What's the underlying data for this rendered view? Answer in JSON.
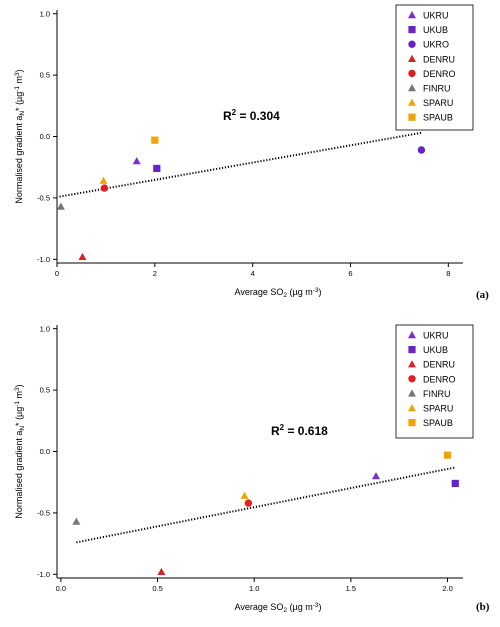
{
  "colors": {
    "UKRU": "#7a2fd0",
    "UKUB": "#6a22c8",
    "UKRO": "#6a22c8",
    "DENRU": "#e02020",
    "DENRO": "#e02020",
    "FINRU": "#777777",
    "SPARU": "#f2a400",
    "SPAUB": "#f2a400"
  },
  "chart_data": [
    {
      "type": "scatter",
      "panel_label": "(a)",
      "xlabel_main": "Average SO",
      "xlabel_sub": "2",
      "xlabel_unit": " (µg m",
      "xlabel_unit_sup": "-3",
      "xlabel_end": ")",
      "ylabel": "Normalised gradient a",
      "ylabel_sub": "N",
      "ylabel_rest": "* (µg",
      "ylabel_sup1": "-1",
      "ylabel_m": " m",
      "ylabel_sup2": "3",
      "ylabel_end": ")",
      "xlim": [
        0,
        8.3
      ],
      "ylim": [
        -1.03,
        1.03
      ],
      "xticks": [
        0,
        2,
        4,
        6,
        8
      ],
      "yticks": [
        1.0,
        0.5,
        0.0,
        -0.5,
        -1.0
      ],
      "xtick_labels": [
        "0",
        "2",
        "4",
        "6",
        "8"
      ],
      "ytick_labels": [
        "1.0",
        "0.5",
        "0.0",
        "-0.5",
        "-1.0"
      ],
      "r2_label": "R",
      "r2_sup": "2",
      "r2_value": " = 0.304",
      "trend": {
        "x": [
          0.05,
          7.45
        ],
        "y": [
          -0.49,
          0.03
        ]
      },
      "legend": [
        "UKRU",
        "UKUB",
        "UKRO",
        "DENRU",
        "DENRO",
        "FINRU",
        "SPARU",
        "SPAUB"
      ],
      "markers": {
        "UKRU": "triangle",
        "UKUB": "square",
        "UKRO": "circle",
        "DENRU": "triangle",
        "DENRO": "circle",
        "FINRU": "triangle",
        "SPARU": "triangle",
        "SPAUB": "square"
      },
      "points": [
        {
          "name": "UKRU",
          "x": 1.63,
          "y": -0.2
        },
        {
          "name": "UKUB",
          "x": 2.04,
          "y": -0.26
        },
        {
          "name": "UKRO",
          "x": 7.45,
          "y": -0.11
        },
        {
          "name": "DENRU",
          "x": 0.52,
          "y": -0.98
        },
        {
          "name": "DENRO",
          "x": 0.97,
          "y": -0.42
        },
        {
          "name": "FINRU",
          "x": 0.08,
          "y": -0.57
        },
        {
          "name": "SPARU",
          "x": 0.95,
          "y": -0.36
        },
        {
          "name": "SPAUB",
          "x": 2.0,
          "y": -0.03
        }
      ]
    },
    {
      "type": "scatter",
      "panel_label": "(b)",
      "xlabel_main": "Average SO",
      "xlabel_sub": "2",
      "xlabel_unit": " (µg m",
      "xlabel_unit_sup": "-3",
      "xlabel_end": ")",
      "ylabel": "Normalised gradient a",
      "ylabel_sub": "N",
      "ylabel_rest": "* (µg",
      "ylabel_sup1": "-1",
      "ylabel_m": " m",
      "ylabel_sup2": "3",
      "ylabel_end": ")",
      "xlim": [
        -0.02,
        2.08
      ],
      "ylim": [
        -1.03,
        1.03
      ],
      "xticks": [
        0.0,
        0.5,
        1.0,
        1.5,
        2.0
      ],
      "yticks": [
        1.0,
        0.5,
        0.0,
        -0.5,
        -1.0
      ],
      "xtick_labels": [
        "0.0",
        "0.5",
        "1.0",
        "1.5",
        "2.0"
      ],
      "ytick_labels": [
        "1.0",
        "0.5",
        "0.0",
        "-0.5",
        "-1.0"
      ],
      "r2_label": "R",
      "r2_sup": "2",
      "r2_value": " = 0.618",
      "trend": {
        "x": [
          0.08,
          2.04
        ],
        "y": [
          -0.74,
          -0.13
        ]
      },
      "legend": [
        "UKRU",
        "UKUB",
        "DENRU",
        "DENRO",
        "FINRU",
        "SPARU",
        "SPAUB"
      ],
      "markers": {
        "UKRU": "triangle",
        "UKUB": "square",
        "DENRU": "triangle",
        "DENRO": "circle",
        "FINRU": "triangle",
        "SPARU": "triangle",
        "SPAUB": "square"
      },
      "points": [
        {
          "name": "UKRU",
          "x": 1.63,
          "y": -0.2
        },
        {
          "name": "UKUB",
          "x": 2.04,
          "y": -0.26
        },
        {
          "name": "DENRU",
          "x": 0.52,
          "y": -0.98
        },
        {
          "name": "DENRO",
          "x": 0.97,
          "y": -0.42
        },
        {
          "name": "FINRU",
          "x": 0.08,
          "y": -0.57
        },
        {
          "name": "SPARU",
          "x": 0.95,
          "y": -0.36
        },
        {
          "name": "SPAUB",
          "x": 2.0,
          "y": -0.03
        }
      ]
    }
  ]
}
